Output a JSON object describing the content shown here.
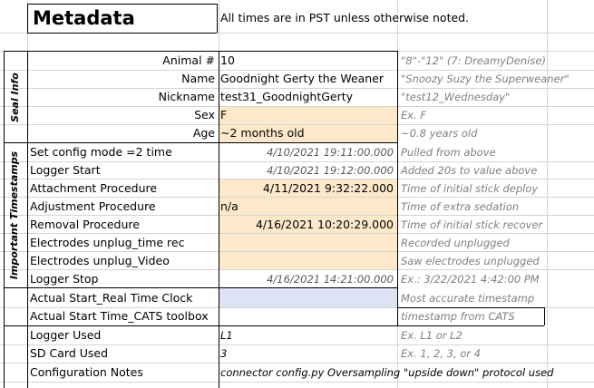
{
  "header": {
    "title": "Metadata",
    "note": "All times are in PST unless otherwise noted."
  },
  "sections": {
    "seal_info": "Seal Info",
    "important_timestamps": "Important Timestamps"
  },
  "rows": [
    {
      "label": "Animal #",
      "value": "10",
      "note": "\"8\"-\"12\" (7: DreamyDenise)"
    },
    {
      "label": "Name",
      "value": "Goodnight Gerty the Weaner",
      "note": "\"Snoozy Suzy the Superweaner\""
    },
    {
      "label": "Nickname",
      "value": "test31_GoodnightGerty",
      "note": "\"test12_Wednesday\""
    },
    {
      "label": "Sex",
      "value": "F",
      "note": "Ex. F"
    },
    {
      "label": "Age",
      "value": "~2 months old",
      "note": "~0.8 years old"
    },
    {
      "label": "Set config mode =2 time",
      "value": "4/10/2021 19:11:00.000",
      "note": "Pulled from above"
    },
    {
      "label": "Logger Start",
      "value": "4/10/2021 19:12:00.000",
      "note": "Added 20s to value above"
    },
    {
      "label": "Attachment Procedure",
      "value": "4/11/2021 9:32:22.000",
      "note": "Time of initial stick deploy"
    },
    {
      "label": "Adjustment Procedure",
      "value": "n/a",
      "note": "Time of extra sedation"
    },
    {
      "label": "Removal Procedure",
      "value": "4/16/2021 10:20:29.000",
      "note": "Time of initial stick recover"
    },
    {
      "label": "Electrodes unplug_time rec",
      "value": "",
      "note": "Recorded unplugged"
    },
    {
      "label": "Electrodes unplug_Video",
      "value": "",
      "note": "Saw electrodes unplugged"
    },
    {
      "label": "Logger Stop",
      "value": "4/16/2021 14:21:00.000",
      "note": "Ex.: 3/22/2021 4:42:00 PM"
    },
    {
      "label": "Actual Start_Real Time Clock",
      "value": "",
      "note": "Most accurate timestamp"
    },
    {
      "label": "Actual Start Time_CATS toolbox",
      "value": "",
      "note": "timestamp from CATS"
    },
    {
      "label": "Logger Used",
      "value": "L1",
      "note": "Ex. L1 or L2"
    },
    {
      "label": "SD Card Used",
      "value": "3",
      "note": "Ex. 1, 2, 3, or 4"
    },
    {
      "label": "Configuration Notes",
      "value": "connector config.py Oversampling \"upside down\" protocol used",
      "note": ""
    }
  ]
}
